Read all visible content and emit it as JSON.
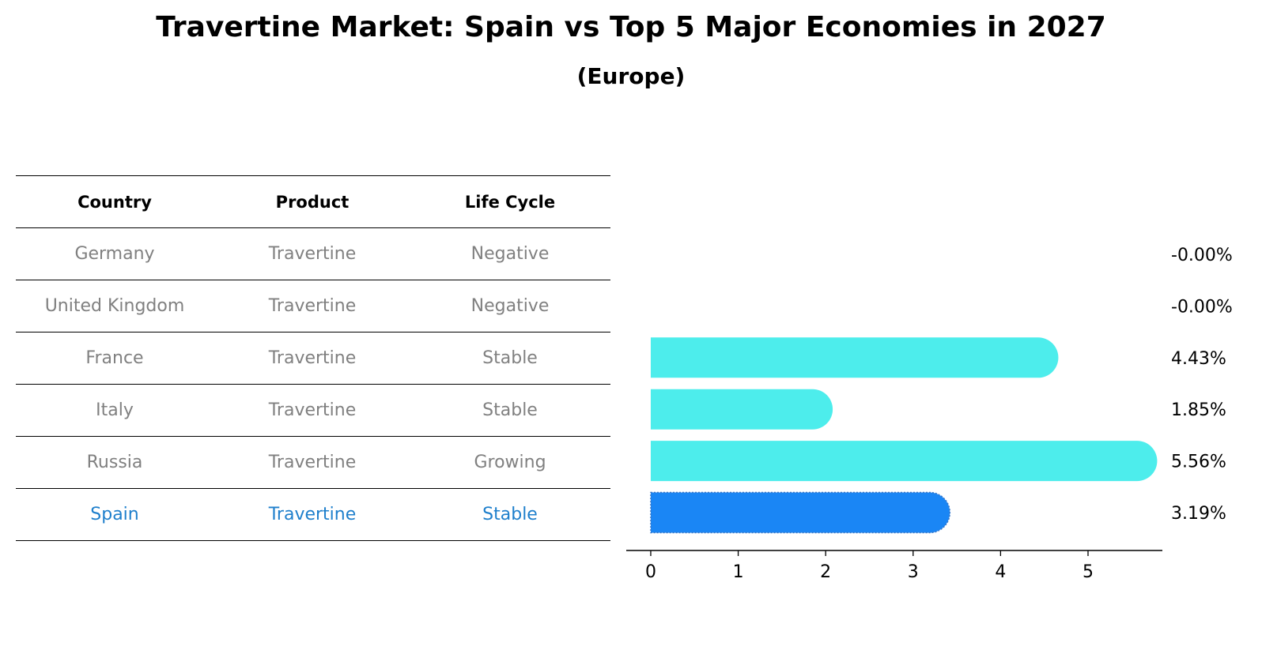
{
  "chart_data": {
    "type": "bar",
    "orientation": "horizontal",
    "title": "Travertine Market: Spain vs Top 5 Major Economies in 2027",
    "subtitle": "(Europe)",
    "categories": [
      "Germany",
      "United Kingdom",
      "France",
      "Italy",
      "Russia",
      "Spain"
    ],
    "values": [
      0.0,
      0.0,
      4.43,
      1.85,
      5.56,
      3.19
    ],
    "value_labels": [
      "-0.00%",
      "-0.00%",
      "4.43%",
      "1.85%",
      "5.56%",
      "3.19%"
    ],
    "highlight": "Spain",
    "xlim": [
      -0.28,
      5.85
    ],
    "xticks": [
      0,
      1,
      2,
      3,
      4,
      5
    ],
    "xlabel": "",
    "ylabel": "",
    "colors": {
      "bar": "#4dedec",
      "highlight": "#1a86f5",
      "highlight_text": "#1e7fcc",
      "muted_text": "#808080"
    }
  },
  "table": {
    "headers": [
      "Country",
      "Product",
      "Life Cycle"
    ],
    "rows": [
      [
        "Germany",
        "Travertine",
        "Negative"
      ],
      [
        "United Kingdom",
        "Travertine",
        "Negative"
      ],
      [
        "France",
        "Travertine",
        "Stable"
      ],
      [
        "Italy",
        "Travertine",
        "Stable"
      ],
      [
        "Russia",
        "Travertine",
        "Growing"
      ],
      [
        "Spain",
        "Travertine",
        "Stable"
      ]
    ]
  }
}
